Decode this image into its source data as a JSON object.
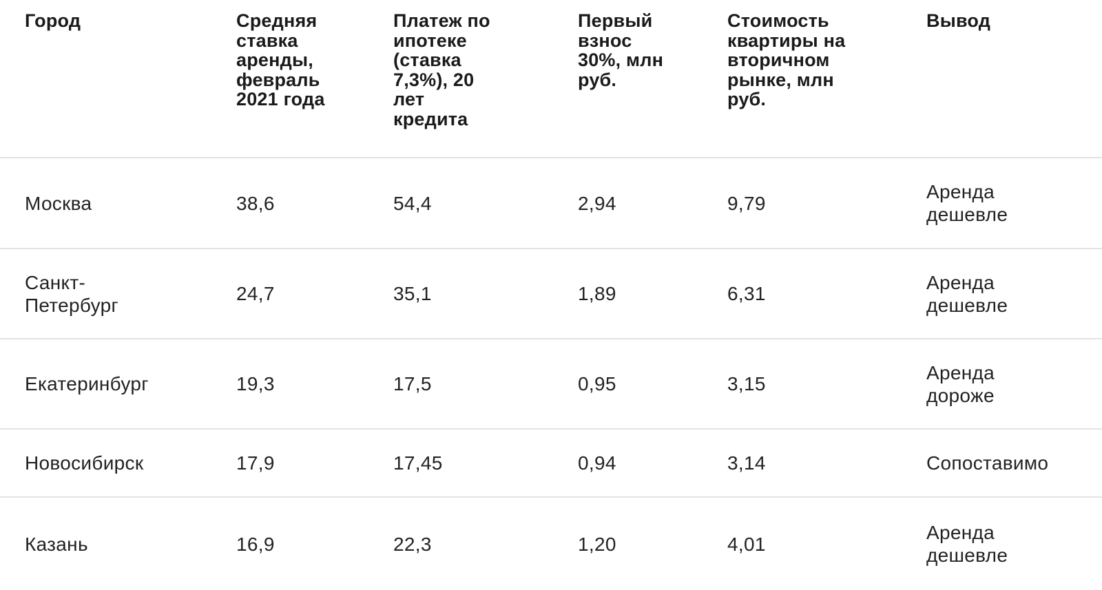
{
  "headers": [
    "Город",
    "Средняя ставка аренды, февраль 2021 года",
    "Платеж по ипотеке (ставка 7,3%), 20 лет кредита",
    "Первый взнос 30%, млн руб.",
    "Стоимость квартиры на вторичном рынке, млн руб.",
    "Вывод"
  ],
  "rows": [
    [
      "Москва",
      "38,6",
      "54,4",
      "2,94",
      "9,79",
      "Аренда дешевле"
    ],
    [
      "Санкт-Петербург",
      "24,7",
      "35,1",
      "1,89",
      "6,31",
      "Аренда дешевле"
    ],
    [
      "Екатеринбург",
      "19,3",
      "17,5",
      "0,95",
      "3,15",
      "Аренда дороже"
    ],
    [
      "Новосибирск",
      "17,9",
      "17,45",
      "0,94",
      "3,14",
      "Сопоставимо"
    ],
    [
      "Казань",
      "16,9",
      "22,3",
      "1,20",
      "4,01",
      "Аренда дешевле"
    ]
  ]
}
